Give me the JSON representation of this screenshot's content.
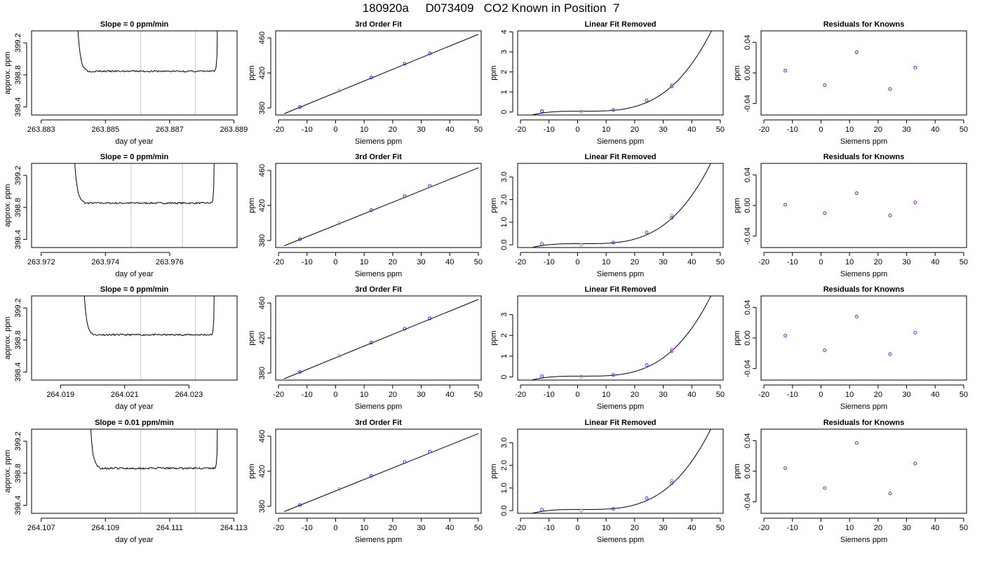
{
  "page_title": "180920a     D073409   CO2 Known in Position  7",
  "colors": {
    "axis": "#000000",
    "curve": "#000000",
    "marker_line": "#c8c8c8",
    "point_blue": "#1a33ff",
    "point_purple": "#8a2be2",
    "point_magenta": "#d26bd6",
    "point_light": "#66a3ff"
  },
  "chart_data": [
    {
      "type": "line",
      "title": "Slope =  0  ppm/min",
      "xlabel": "day of year",
      "ylabel": "approx. ppm",
      "xlim": [
        263.8827,
        263.8891
      ],
      "ylim": [
        398.3,
        399.35
      ],
      "xticks": [
        "263.883",
        "263.885",
        "263.887",
        "263.889"
      ],
      "xtick_values": [
        263.883,
        263.885,
        263.887,
        263.889
      ],
      "yticks": [
        "398.4",
        "398.8",
        "399.2"
      ],
      "ytick_values": [
        398.4,
        398.8,
        399.2
      ],
      "vlines": [
        263.8861,
        263.8878
      ],
      "trace": {
        "x_start": 263.8841,
        "x_end": 263.8885,
        "level": 398.846,
        "noise": 0.01,
        "seed": 3
      }
    },
    {
      "type": "line",
      "title": "3rd Order Fit",
      "xlabel": "Siemens ppm",
      "ylabel": "ppm",
      "xlim": [
        -21,
        51
      ],
      "ylim": [
        372,
        468
      ],
      "xticks": [
        "-20",
        "-10",
        "0",
        "10",
        "20",
        "30",
        "40",
        "50"
      ],
      "xtick_values": [
        -20,
        -10,
        0,
        10,
        20,
        30,
        40,
        50
      ],
      "yticks": [
        "380",
        "420",
        "460"
      ],
      "ytick_values": [
        380,
        420,
        460
      ],
      "curve": [
        [
          -18,
          373.5
        ],
        [
          50,
          464
        ]
      ],
      "points": [
        [
          -12.5,
          381.2,
          "blue"
        ],
        [
          1.3,
          399.8,
          "magenta"
        ],
        [
          12.5,
          414.8,
          "blue"
        ],
        [
          24.2,
          430.5,
          "blue"
        ],
        [
          33.0,
          442.3,
          "blue"
        ]
      ]
    },
    {
      "type": "line",
      "title": "Linear Fit Removed",
      "xlabel": "Siemens ppm",
      "ylabel": "ppm",
      "xlim": [
        -21,
        51
      ],
      "ylim": [
        -0.15,
        4.05
      ],
      "xticks": [
        "-20",
        "-10",
        "0",
        "10",
        "20",
        "30",
        "40",
        "50"
      ],
      "xtick_values": [
        -20,
        -10,
        0,
        10,
        20,
        30,
        40,
        50
      ],
      "yticks": [
        "0",
        "1",
        "2",
        "3",
        "4"
      ],
      "ytick_values": [
        0,
        1,
        2,
        3,
        4
      ],
      "curve_type": "cubic",
      "curve": {
        "x0": 1.5,
        "a": 0.04,
        "p": 3.2,
        "b": 2e-05,
        "xmin": -18,
        "xmax": 50
      },
      "points": [
        [
          -12.5,
          0.04,
          "blue"
        ],
        [
          1.3,
          0.02,
          "light"
        ],
        [
          12.5,
          0.1,
          "purple"
        ],
        [
          24.2,
          0.58,
          "purple"
        ],
        [
          33.0,
          1.28,
          "purple"
        ],
        [
          33.0,
          1.35,
          "magenta"
        ]
      ]
    },
    {
      "type": "scatter",
      "title": "Residuals for Knowns",
      "xlabel": "Siemens ppm",
      "ylabel": "ppm",
      "xlim": [
        -21,
        51
      ],
      "ylim": [
        -0.055,
        0.055
      ],
      "xticks": [
        "-20",
        "-10",
        "0",
        "10",
        "20",
        "30",
        "40",
        "50"
      ],
      "xtick_values": [
        -20,
        -10,
        0,
        10,
        20,
        30,
        40,
        50
      ],
      "yticks": [
        "-0.04",
        "0.00",
        "0.04"
      ],
      "ytick_values": [
        -0.04,
        0.0,
        0.04
      ],
      "points": [
        [
          -12.5,
          0.003,
          "purple"
        ],
        [
          1.3,
          -0.016,
          "purple"
        ],
        [
          12.5,
          0.027,
          "purple"
        ],
        [
          24.2,
          -0.021,
          "purple"
        ],
        [
          33.0,
          0.007,
          "purple"
        ]
      ]
    },
    {
      "type": "line",
      "title": "Slope =  0  ppm/min",
      "xlabel": "day of year",
      "ylabel": "approx. ppm",
      "xlim": [
        263.9717,
        263.9781
      ],
      "ylim": [
        398.3,
        399.35
      ],
      "xticks": [
        "263.972",
        "263.974",
        "263.976"
      ],
      "xtick_values": [
        263.972,
        263.974,
        263.976
      ],
      "yticks": [
        "398.4",
        "398.8",
        "399.2"
      ],
      "ytick_values": [
        398.4,
        398.8,
        399.2
      ],
      "vlines": [
        263.9748,
        263.9764
      ],
      "trace": {
        "x_start": 263.973,
        "x_end": 263.9774,
        "level": 398.855,
        "noise": 0.01,
        "seed": 7
      }
    },
    {
      "type": "line",
      "title": "3rd Order Fit",
      "xlabel": "Siemens ppm",
      "ylabel": "ppm",
      "xlim": [
        -21,
        51
      ],
      "ylim": [
        372,
        468
      ],
      "xticks": [
        "-20",
        "-10",
        "0",
        "10",
        "20",
        "30",
        "40",
        "50"
      ],
      "xtick_values": [
        -20,
        -10,
        0,
        10,
        20,
        30,
        40,
        50
      ],
      "yticks": [
        "380",
        "420",
        "460"
      ],
      "ytick_values": [
        380,
        420,
        460
      ],
      "curve": [
        [
          -18,
          374
        ],
        [
          50,
          463
        ]
      ],
      "points": [
        [
          -12.5,
          381.5,
          "blue"
        ],
        [
          1.3,
          399.8,
          "light"
        ],
        [
          12.5,
          414.8,
          "blue"
        ],
        [
          24.2,
          430.5,
          "blue"
        ],
        [
          33.0,
          442.3,
          "blue"
        ]
      ]
    },
    {
      "type": "line",
      "title": "Linear Fit Removed",
      "xlabel": "Siemens ppm",
      "ylabel": "ppm",
      "xlim": [
        -21,
        51
      ],
      "ylim": [
        -0.12,
        3.6
      ],
      "xticks": [
        "-20",
        "-10",
        "0",
        "10",
        "20",
        "30",
        "40",
        "50"
      ],
      "xtick_values": [
        -20,
        -10,
        0,
        10,
        20,
        30,
        40,
        50
      ],
      "yticks": [
        "0.0",
        "1.0",
        "2.0",
        "3.0"
      ],
      "ytick_values": [
        0,
        1,
        2,
        3
      ],
      "curve_type": "cubic",
      "curve": {
        "x0": 1.5,
        "a": 0.05,
        "p": 3.2,
        "b": 1.8e-05,
        "xmin": -18,
        "xmax": 50
      },
      "points": [
        [
          -12.5,
          0.04,
          "purple"
        ],
        [
          1.3,
          0.0,
          "light"
        ],
        [
          12.5,
          0.1,
          "purple"
        ],
        [
          24.2,
          0.55,
          "purple"
        ],
        [
          33.0,
          1.2,
          "purple"
        ],
        [
          33.0,
          1.3,
          "magenta"
        ]
      ]
    },
    {
      "type": "scatter",
      "title": "Residuals for Knowns",
      "xlabel": "Siemens ppm",
      "ylabel": "ppm",
      "xlim": [
        -21,
        51
      ],
      "ylim": [
        -0.055,
        0.055
      ],
      "xticks": [
        "-20",
        "-10",
        "0",
        "10",
        "20",
        "30",
        "40",
        "50"
      ],
      "xtick_values": [
        -20,
        -10,
        0,
        10,
        20,
        30,
        40,
        50
      ],
      "yticks": [
        "-0.04",
        "0.00",
        "0.04"
      ],
      "ytick_values": [
        -0.04,
        0.0,
        0.04
      ],
      "points": [
        [
          -12.5,
          0.001,
          "purple"
        ],
        [
          1.3,
          -0.01,
          "purple"
        ],
        [
          12.5,
          0.016,
          "purple"
        ],
        [
          24.2,
          -0.013,
          "purple"
        ],
        [
          33.0,
          0.004,
          "purple"
        ]
      ]
    },
    {
      "type": "line",
      "title": "Slope =  0  ppm/min",
      "xlabel": "day of year",
      "ylabel": "approx. ppm",
      "xlim": [
        264.0181,
        264.0245
      ],
      "ylim": [
        398.3,
        399.35
      ],
      "xticks": [
        "264.019",
        "264.021",
        "264.023"
      ],
      "xtick_values": [
        264.019,
        264.021,
        264.023
      ],
      "yticks": [
        "398.4",
        "398.8",
        "399.2"
      ],
      "ytick_values": [
        398.4,
        398.8,
        399.2
      ],
      "vlines": [
        264.0215,
        264.0232
      ],
      "trace": {
        "x_start": 264.0197,
        "x_end": 264.0238,
        "level": 398.865,
        "noise": 0.01,
        "seed": 11
      }
    },
    {
      "type": "line",
      "title": "3rd Order Fit",
      "xlabel": "Siemens ppm",
      "ylabel": "ppm",
      "xlim": [
        -21,
        51
      ],
      "ylim": [
        372,
        468
      ],
      "xticks": [
        "-20",
        "-10",
        "0",
        "10",
        "20",
        "30",
        "40",
        "50"
      ],
      "xtick_values": [
        -20,
        -10,
        0,
        10,
        20,
        30,
        40,
        50
      ],
      "yticks": [
        "380",
        "420",
        "460"
      ],
      "ytick_values": [
        380,
        420,
        460
      ],
      "curve": [
        [
          -18,
          373.5
        ],
        [
          50,
          464
        ]
      ],
      "points": [
        [
          -12.5,
          381.2,
          "blue"
        ],
        [
          1.3,
          399.8,
          "magenta"
        ],
        [
          12.5,
          414.8,
          "blue"
        ],
        [
          24.2,
          430.5,
          "blue"
        ],
        [
          33.0,
          442.3,
          "blue"
        ]
      ]
    },
    {
      "type": "line",
      "title": "Linear Fit Removed",
      "xlabel": "Siemens ppm",
      "ylabel": "ppm",
      "xlim": [
        -21,
        51
      ],
      "ylim": [
        -0.15,
        3.9
      ],
      "xticks": [
        "-20",
        "-10",
        "0",
        "10",
        "20",
        "30",
        "40",
        "50"
      ],
      "xtick_values": [
        -20,
        -10,
        0,
        10,
        20,
        30,
        40,
        50
      ],
      "yticks": [
        "0",
        "1",
        "2",
        "3"
      ],
      "ytick_values": [
        0,
        1,
        2,
        3
      ],
      "curve_type": "cubic",
      "curve": {
        "x0": 1.5,
        "a": 0.04,
        "p": 3.2,
        "b": 1.95e-05,
        "xmin": -18,
        "xmax": 50
      },
      "points": [
        [
          -12.5,
          0.04,
          "purple"
        ],
        [
          1.3,
          0.02,
          "light"
        ],
        [
          12.5,
          0.1,
          "purple"
        ],
        [
          24.2,
          0.58,
          "purple"
        ],
        [
          33.0,
          1.25,
          "purple"
        ],
        [
          33.0,
          1.33,
          "magenta"
        ]
      ]
    },
    {
      "type": "scatter",
      "title": "Residuals for Knowns",
      "xlabel": "Siemens ppm",
      "ylabel": "ppm",
      "xlim": [
        -21,
        51
      ],
      "ylim": [
        -0.055,
        0.055
      ],
      "xticks": [
        "-20",
        "-10",
        "0",
        "10",
        "20",
        "30",
        "40",
        "50"
      ],
      "xtick_values": [
        -20,
        -10,
        0,
        10,
        20,
        30,
        40,
        50
      ],
      "yticks": [
        "-0.04",
        "0.00",
        "0.04"
      ],
      "ytick_values": [
        -0.04,
        0.0,
        0.04
      ],
      "points": [
        [
          -12.5,
          0.003,
          "purple"
        ],
        [
          1.3,
          -0.016,
          "purple"
        ],
        [
          12.5,
          0.028,
          "purple"
        ],
        [
          24.2,
          -0.021,
          "purple"
        ],
        [
          33.0,
          0.007,
          "purple"
        ]
      ]
    },
    {
      "type": "line",
      "title": "Slope =  0.01  ppm/min",
      "xlabel": "day of year",
      "ylabel": "approx. ppm",
      "xlim": [
        264.1067,
        264.1131
      ],
      "ylim": [
        398.3,
        399.35
      ],
      "xticks": [
        "264.107",
        "264.109",
        "264.111",
        "264.113"
      ],
      "xtick_values": [
        264.107,
        264.109,
        264.111,
        264.113
      ],
      "yticks": [
        "398.4",
        "398.8",
        "399.2"
      ],
      "ytick_values": [
        398.4,
        398.8,
        399.2
      ],
      "vlines": [
        264.1101,
        264.1118
      ],
      "trace": {
        "x_start": 264.1085,
        "x_end": 264.1125,
        "level": 398.862,
        "noise": 0.011,
        "seed": 19
      }
    },
    {
      "type": "line",
      "title": "3rd Order Fit",
      "xlabel": "Siemens ppm",
      "ylabel": "ppm",
      "xlim": [
        -21,
        51
      ],
      "ylim": [
        372,
        468
      ],
      "xticks": [
        "-20",
        "-10",
        "0",
        "10",
        "20",
        "30",
        "40",
        "50"
      ],
      "xtick_values": [
        -20,
        -10,
        0,
        10,
        20,
        30,
        40,
        50
      ],
      "yticks": [
        "380",
        "420",
        "460"
      ],
      "ytick_values": [
        380,
        420,
        460
      ],
      "curve": [
        [
          -18,
          374
        ],
        [
          50,
          463
        ]
      ],
      "points": [
        [
          -12.5,
          381.5,
          "blue"
        ],
        [
          1.3,
          399.8,
          "magenta"
        ],
        [
          12.5,
          414.8,
          "blue"
        ],
        [
          24.2,
          430.5,
          "blue"
        ],
        [
          33.0,
          442.3,
          "blue"
        ]
      ]
    },
    {
      "type": "line",
      "title": "Linear Fit Removed",
      "xlabel": "Siemens ppm",
      "ylabel": "ppm",
      "xlim": [
        -21,
        51
      ],
      "ylim": [
        -0.12,
        3.6
      ],
      "xticks": [
        "-20",
        "-10",
        "0",
        "10",
        "20",
        "30",
        "40",
        "50"
      ],
      "xtick_values": [
        -20,
        -10,
        0,
        10,
        20,
        30,
        40,
        50
      ],
      "yticks": [
        "0.0",
        "1.0",
        "2.0",
        "3.0"
      ],
      "ytick_values": [
        0,
        1,
        2,
        3
      ],
      "curve_type": "cubic",
      "curve": {
        "x0": 1.5,
        "a": 0.05,
        "p": 3.2,
        "b": 1.8e-05,
        "xmin": -18,
        "xmax": 50
      },
      "points": [
        [
          -12.5,
          0.04,
          "purple"
        ],
        [
          1.3,
          0.0,
          "light"
        ],
        [
          12.5,
          0.08,
          "purple"
        ],
        [
          24.2,
          0.55,
          "purple"
        ],
        [
          33.0,
          1.22,
          "purple"
        ],
        [
          33.0,
          1.32,
          "magenta"
        ]
      ]
    },
    {
      "type": "scatter",
      "title": "Residuals for Knowns",
      "xlabel": "Siemens ppm",
      "ylabel": "ppm",
      "xlim": [
        -21,
        51
      ],
      "ylim": [
        -0.055,
        0.055
      ],
      "xticks": [
        "-20",
        "-10",
        "0",
        "10",
        "20",
        "30",
        "40",
        "50"
      ],
      "xtick_values": [
        -20,
        -10,
        0,
        10,
        20,
        30,
        40,
        50
      ],
      "yticks": [
        "-0.04",
        "0.00",
        "0.04"
      ],
      "ytick_values": [
        -0.04,
        0.0,
        0.04
      ],
      "points": [
        [
          -12.5,
          0.004,
          "purple"
        ],
        [
          1.3,
          -0.022,
          "purple"
        ],
        [
          12.5,
          0.037,
          "purple"
        ],
        [
          24.2,
          -0.029,
          "purple"
        ],
        [
          33.0,
          0.01,
          "purple"
        ]
      ]
    }
  ]
}
